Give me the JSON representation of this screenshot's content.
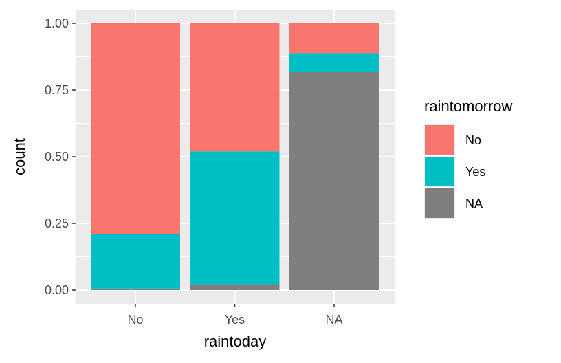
{
  "chart_data": {
    "type": "bar",
    "stacked": true,
    "position": "fill",
    "xlabel": "raintoday",
    "ylabel": "count",
    "categories": [
      "No",
      "Yes",
      "NA"
    ],
    "ylim": [
      0,
      1
    ],
    "yticks": [
      "0.00",
      "0.25",
      "0.50",
      "0.75",
      "1.00"
    ],
    "ytick_values": [
      0,
      0.25,
      0.5,
      0.75,
      1.0
    ],
    "grid": true,
    "legend_position": "right",
    "legend_title": "raintomorrow",
    "series": [
      {
        "name": "NA",
        "color": "#7f7f7f",
        "values": [
          0.006,
          0.022,
          0.818
        ]
      },
      {
        "name": "Yes",
        "color": "#00bfc4",
        "values": [
          0.204,
          0.498,
          0.07
        ]
      },
      {
        "name": "No",
        "color": "#f8766d",
        "values": [
          0.79,
          0.48,
          0.112
        ]
      }
    ],
    "legend_order": [
      "No",
      "Yes",
      "NA"
    ]
  }
}
